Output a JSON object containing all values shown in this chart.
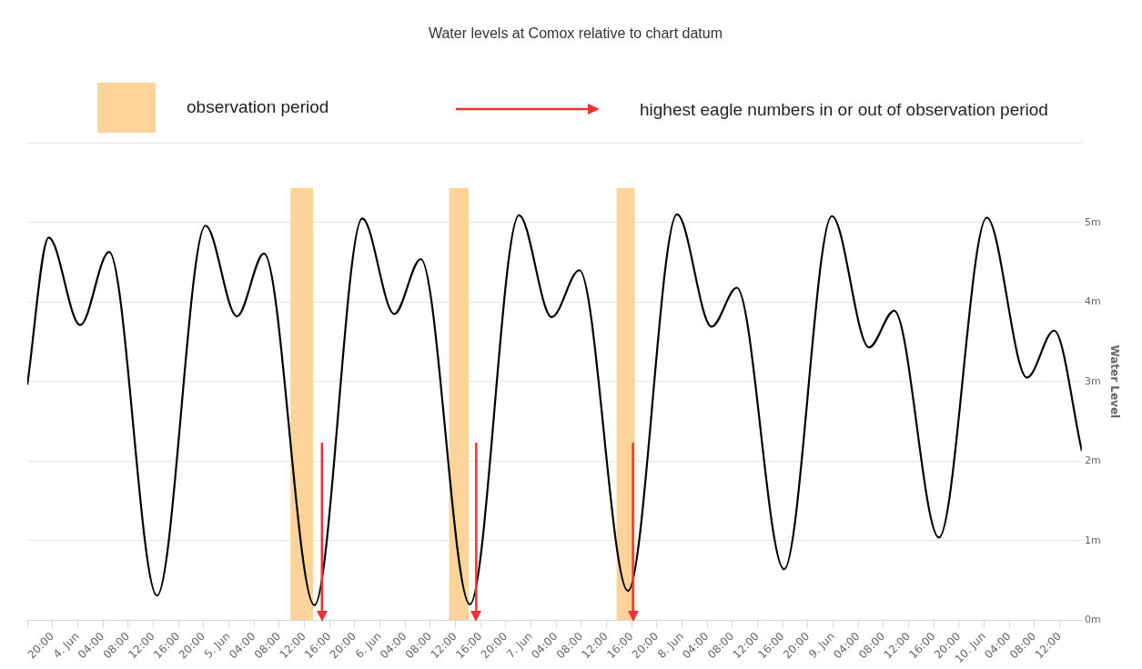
{
  "chart_data": {
    "type": "line",
    "title": "Water levels at Comox relative to chart datum",
    "ylabel": "Water Level",
    "annotations": [
      "observation period",
      "highest eagle numbers in or out of observation period"
    ],
    "series": [
      {
        "color": "#000000",
        "x": [
          "--06-03T16:00",
          "--06-03T19:24",
          "--06-04T00:24",
          "--06-04T05:00",
          "--06-04T12:36",
          "--06-04T20:18",
          "--06-05T01:18",
          "--06-05T05:36",
          "--06-05T13:36",
          "--06-05T21:12",
          "--06-06T02:18",
          "--06-06T06:30",
          "--06-06T14:18",
          "--06-06T22:06",
          "--06-07T03:18",
          "--06-07T07:42",
          "--06-07T15:24",
          "--06-07T23:12",
          "--06-08T04:42",
          "--06-08T08:42",
          "--06-08T16:12",
          "--06-08T23:48",
          "--06-09T05:42",
          "--06-09T09:42",
          "--06-09T16:48",
          "--06-10T00:24",
          "--06-10T06:48",
          "--06-10T11:06",
          "--06-10T15:30"
        ],
        "values": [
          2.96,
          4.81,
          3.71,
          4.63,
          0.31,
          4.96,
          3.82,
          4.61,
          0.19,
          5.05,
          3.85,
          4.54,
          0.2,
          5.09,
          3.81,
          4.4,
          0.37,
          5.1,
          3.69,
          4.18,
          0.64,
          5.08,
          3.43,
          3.89,
          1.04,
          5.06,
          3.05,
          3.64,
          2.13
        ]
      }
    ],
    "bands": [
      {
        "axis": "x",
        "from": "--06-05T09:48",
        "to": "--06-05T13:24",
        "color": "#fcd49a"
      },
      {
        "axis": "x",
        "from": "--06-06T11:00",
        "to": "--06-06T14:06",
        "color": "#fcd49a"
      },
      {
        "axis": "x",
        "from": "--06-07T13:36",
        "to": "--06-07T16:30",
        "color": "#fcd49a"
      }
    ],
    "ref_lines": [
      {
        "axis": "x",
        "value": "--06-05T14:48",
        "color": "#ee3333"
      },
      {
        "axis": "x",
        "value": "--06-06T15:18",
        "color": "#ee3333"
      },
      {
        "axis": "x",
        "value": "--06-07T16:12",
        "color": "#ee3333"
      }
    ],
    "xlim": [
      "--06-03T16:00",
      "--06-10T15:30"
    ],
    "xticks": [
      {
        "value": "--06-03T16:00",
        "label": null
      },
      {
        "value": "--06-03T20:00",
        "label": "20:00"
      },
      {
        "value": "--06-04T00:00",
        "label": "4. Jun"
      },
      {
        "value": "--06-04T04:00",
        "label": "04:00"
      },
      {
        "value": "--06-04T08:00",
        "label": "08:00"
      },
      {
        "value": "--06-04T12:00",
        "label": "12:00"
      },
      {
        "value": "--06-04T16:00",
        "label": "16:00"
      },
      {
        "value": "--06-04T20:00",
        "label": "20:00"
      },
      {
        "value": "--06-05T00:00",
        "label": "5. Jun"
      },
      {
        "value": "--06-05T04:00",
        "label": "04:00"
      },
      {
        "value": "--06-05T08:00",
        "label": "08:00"
      },
      {
        "value": "--06-05T12:00",
        "label": "12:00"
      },
      {
        "value": "--06-05T16:00",
        "label": "16:00"
      },
      {
        "value": "--06-05T20:00",
        "label": "20:00"
      },
      {
        "value": "--06-06T00:00",
        "label": "6. Jun"
      },
      {
        "value": "--06-06T04:00",
        "label": "04:00"
      },
      {
        "value": "--06-06T08:00",
        "label": "08:00"
      },
      {
        "value": "--06-06T12:00",
        "label": "12:00"
      },
      {
        "value": "--06-06T16:00",
        "label": "16:00"
      },
      {
        "value": "--06-06T20:00",
        "label": "20:00"
      },
      {
        "value": "--06-07T00:00",
        "label": "7. Jun"
      },
      {
        "value": "--06-07T04:00",
        "label": "04:00"
      },
      {
        "value": "--06-07T08:00",
        "label": "08:00"
      },
      {
        "value": "--06-07T12:00",
        "label": "12:00"
      },
      {
        "value": "--06-07T16:00",
        "label": "16:00"
      },
      {
        "value": "--06-07T20:00",
        "label": "20:00"
      },
      {
        "value": "--06-08T00:00",
        "label": "8. Jun"
      },
      {
        "value": "--06-08T04:00",
        "label": "04:00"
      },
      {
        "value": "--06-08T08:00",
        "label": "08:00"
      },
      {
        "value": "--06-08T12:00",
        "label": "12:00"
      },
      {
        "value": "--06-08T16:00",
        "label": "16:00"
      },
      {
        "value": "--06-08T20:00",
        "label": "20:00"
      },
      {
        "value": "--06-09T00:00",
        "label": "9. Jun"
      },
      {
        "value": "--06-09T04:00",
        "label": "04:00"
      },
      {
        "value": "--06-09T08:00",
        "label": "08:00"
      },
      {
        "value": "--06-09T12:00",
        "label": "12:00"
      },
      {
        "value": "--06-09T16:00",
        "label": "16:00"
      },
      {
        "value": "--06-09T20:00",
        "label": "20:00"
      },
      {
        "value": "--06-10T00:00",
        "label": "10. Jun"
      },
      {
        "value": "--06-10T04:00",
        "label": "04:00"
      },
      {
        "value": "--06-10T08:00",
        "label": "08:00"
      },
      {
        "value": "--06-10T12:00",
        "label": "12:00"
      }
    ],
    "ylim": [
      0,
      6
    ],
    "yticks": [
      {
        "value": 0,
        "label": "0m"
      },
      {
        "value": 1,
        "label": "1m"
      },
      {
        "value": 2,
        "label": "2m"
      },
      {
        "value": 3,
        "label": "3m"
      },
      {
        "value": 4,
        "label": "4m"
      },
      {
        "value": 5,
        "label": "5m"
      },
      {
        "value": 6,
        "label": null
      }
    ],
    "grid": "y",
    "marker": "none",
    "line_style": "solid"
  }
}
